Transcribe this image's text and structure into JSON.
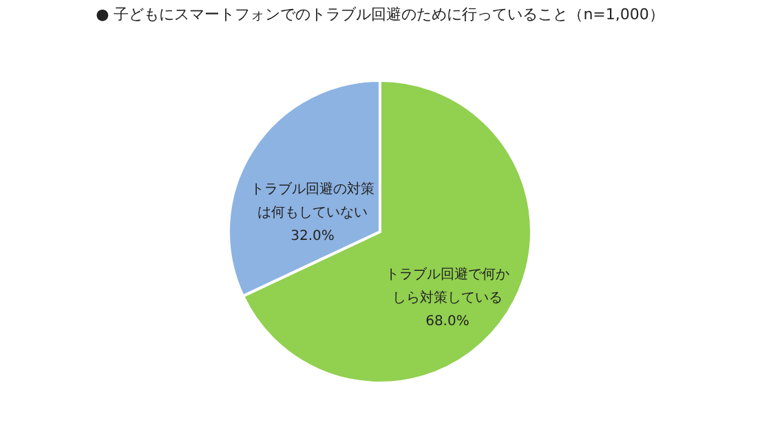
{
  "chart_data": {
    "type": "pie",
    "title": "●  子どもにスマートフォンでのトラブル回避のために行っていること（n=1,000）",
    "categories": [
      "トラブル回避で何かしら対策している",
      "トラブル回避の対策は何もしていない"
    ],
    "values": [
      68.0,
      32.0
    ],
    "colors": [
      "#92d050",
      "#8db3e2"
    ],
    "value_labels": [
      "68.0%",
      "32.0%"
    ],
    "legend": false
  }
}
